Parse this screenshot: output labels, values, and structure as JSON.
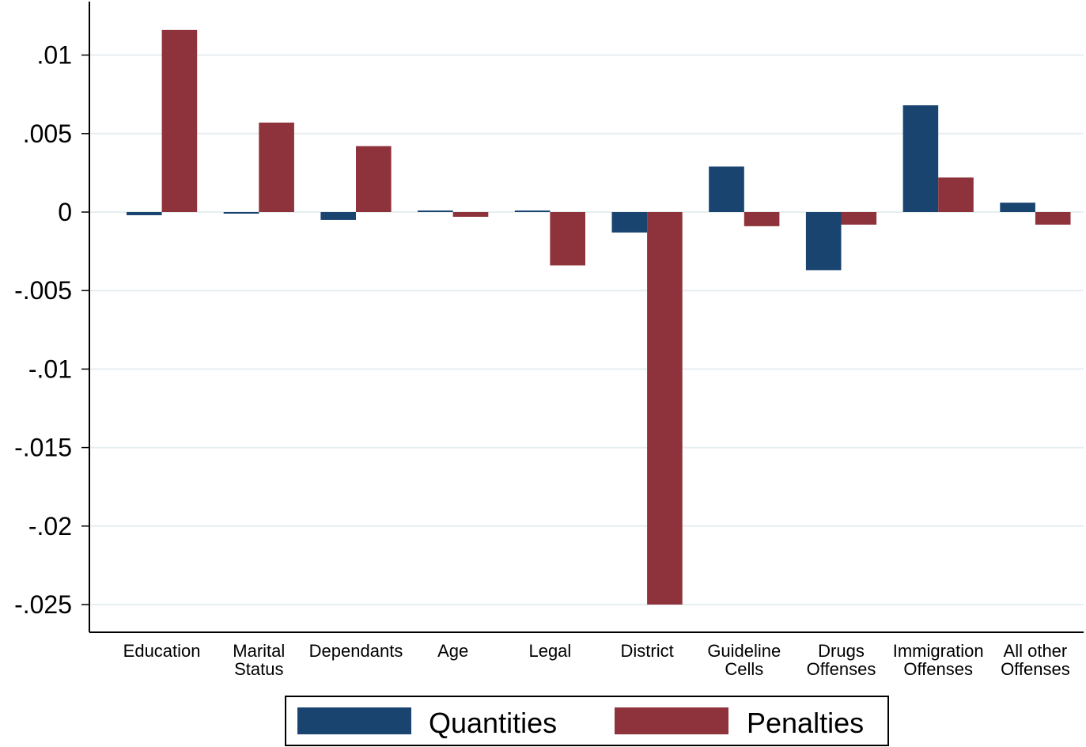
{
  "chart_data": {
    "type": "bar",
    "categories": [
      [
        "Education"
      ],
      [
        "Marital",
        "Status"
      ],
      [
        "Dependants"
      ],
      [
        "Age"
      ],
      [
        "Legal"
      ],
      [
        "District"
      ],
      [
        "Guideline",
        "Cells"
      ],
      [
        "Drugs",
        "Offenses"
      ],
      [
        "Immigration",
        "Offenses"
      ],
      [
        "All other",
        "Offenses"
      ]
    ],
    "series": [
      {
        "name": "Quantities",
        "color": "#1a4470",
        "values": [
          -0.0002,
          -0.0001,
          -0.0005,
          0.0001,
          0.0001,
          -0.0013,
          0.0029,
          -0.0037,
          0.0068,
          0.0006
        ]
      },
      {
        "name": "Penalties",
        "color": "#8e323b",
        "values": [
          0.0116,
          0.0057,
          0.0042,
          -0.0003,
          -0.0034,
          -0.025,
          -0.0009,
          -0.0008,
          0.0022,
          -0.0008
        ]
      }
    ],
    "yticks": [
      {
        "value": 0.01,
        "label": ".01"
      },
      {
        "value": 0.005,
        "label": ".005"
      },
      {
        "value": 0,
        "label": "0"
      },
      {
        "value": -0.005,
        "label": "-.005"
      },
      {
        "value": -0.01,
        "label": "-.01"
      },
      {
        "value": -0.015,
        "label": "-.015"
      },
      {
        "value": -0.02,
        "label": "-.02"
      },
      {
        "value": -0.025,
        "label": "-.025"
      }
    ],
    "ylim": [
      -0.0268,
      0.0134
    ],
    "grid": true,
    "legend_position": "bottom",
    "title": "",
    "xlabel": "",
    "ylabel": ""
  }
}
